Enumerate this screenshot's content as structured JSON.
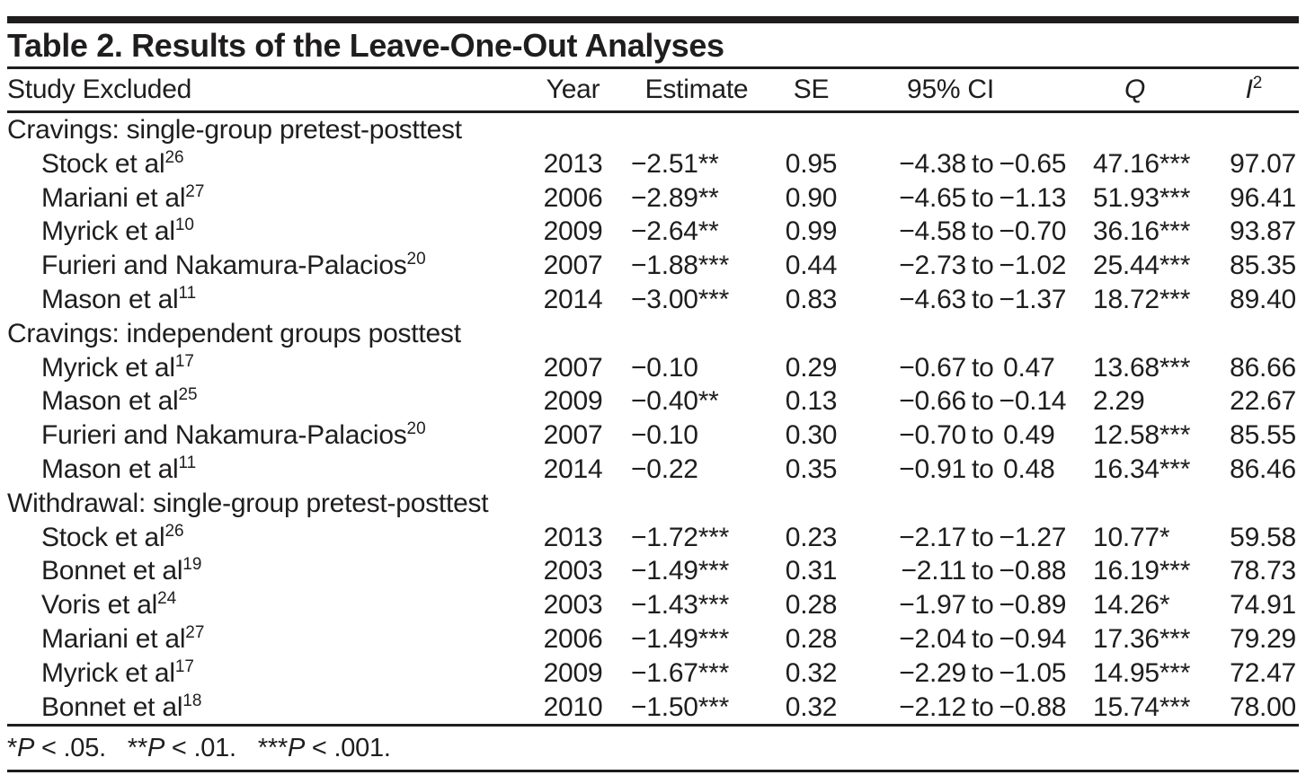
{
  "title": "Table 2. Results of the Leave-One-Out Analyses",
  "columns": {
    "study": "Study Excluded",
    "year": "Year",
    "estimate": "Estimate",
    "se": "SE",
    "ci": "95% CI",
    "q": "Q",
    "i2_base": "I",
    "i2_sup": "2"
  },
  "labels": {
    "ci_separator": "to"
  },
  "sections": [
    {
      "label": "Cravings: single-group pretest-posttest",
      "rows": [
        {
          "study": "Stock et al",
          "ref": "26",
          "year": "2013",
          "estimate": "−2.51**",
          "se": "0.95",
          "ci_low": "−4.38",
          "ci_high": "−0.65",
          "q": "47.16***",
          "i2": "97.07"
        },
        {
          "study": "Mariani et al",
          "ref": "27",
          "year": "2006",
          "estimate": "−2.89**",
          "se": "0.90",
          "ci_low": "−4.65",
          "ci_high": "−1.13",
          "q": "51.93***",
          "i2": "96.41"
        },
        {
          "study": "Myrick et al",
          "ref": "10",
          "year": "2009",
          "estimate": "−2.64**",
          "se": "0.99",
          "ci_low": "−4.58",
          "ci_high": "−0.70",
          "q": "36.16***",
          "i2": "93.87"
        },
        {
          "study": "Furieri and Nakamura-Palacios",
          "ref": "20",
          "year": "2007",
          "estimate": "−1.88***",
          "se": "0.44",
          "ci_low": "−2.73",
          "ci_high": "−1.02",
          "q": "25.44***",
          "i2": "85.35"
        },
        {
          "study": "Mason et al",
          "ref": "11",
          "year": "2014",
          "estimate": "−3.00***",
          "se": "0.83",
          "ci_low": "−4.63",
          "ci_high": "−1.37",
          "q": "18.72***",
          "i2": "89.40"
        }
      ]
    },
    {
      "label": "Cravings: independent groups posttest",
      "rows": [
        {
          "study": "Myrick et al",
          "ref": "17",
          "year": "2007",
          "estimate": "−0.10",
          "se": "0.29",
          "ci_low": "−0.67",
          "ci_high": "0.47",
          "q": "13.68***",
          "i2": "86.66"
        },
        {
          "study": "Mason et al",
          "ref": "25",
          "year": "2009",
          "estimate": "−0.40**",
          "se": "0.13",
          "ci_low": "−0.66",
          "ci_high": "−0.14",
          "q": "2.29",
          "i2": "22.67"
        },
        {
          "study": "Furieri and Nakamura-Palacios",
          "ref": "20",
          "year": "2007",
          "estimate": "−0.10",
          "se": "0.30",
          "ci_low": "−0.70",
          "ci_high": "0.49",
          "q": "12.58***",
          "i2": "85.55"
        },
        {
          "study": "Mason et al",
          "ref": "11",
          "year": "2014",
          "estimate": "−0.22",
          "se": "0.35",
          "ci_low": "−0.91",
          "ci_high": "0.48",
          "q": "16.34***",
          "i2": "86.46"
        }
      ]
    },
    {
      "label": "Withdrawal: single-group pretest-posttest",
      "rows": [
        {
          "study": "Stock et al",
          "ref": "26",
          "year": "2013",
          "estimate": "−1.72***",
          "se": "0.23",
          "ci_low": "−2.17",
          "ci_high": "−1.27",
          "q": "10.77*",
          "i2": "59.58"
        },
        {
          "study": "Bonnet et al",
          "ref": "19",
          "year": "2003",
          "estimate": "−1.49***",
          "se": "0.31",
          "ci_low": "−2.11",
          "ci_high": "−0.88",
          "q": "16.19***",
          "i2": "78.73"
        },
        {
          "study": "Voris et al",
          "ref": "24",
          "year": "2003",
          "estimate": "−1.43***",
          "se": "0.28",
          "ci_low": "−1.97",
          "ci_high": "−0.89",
          "q": "14.26*",
          "i2": "74.91"
        },
        {
          "study": "Mariani et al",
          "ref": "27",
          "year": "2006",
          "estimate": "−1.49***",
          "se": "0.28",
          "ci_low": "−2.04",
          "ci_high": "−0.94",
          "q": "17.36***",
          "i2": "79.29"
        },
        {
          "study": "Myrick et al",
          "ref": "17",
          "year": "2009",
          "estimate": "−1.67***",
          "se": "0.32",
          "ci_low": "−2.29",
          "ci_high": "−1.05",
          "q": "14.95***",
          "i2": "72.47"
        },
        {
          "study": "Bonnet et al",
          "ref": "18",
          "year": "2010",
          "estimate": "−1.50***",
          "se": "0.32",
          "ci_low": "−2.12",
          "ci_high": "−0.88",
          "q": "15.74***",
          "i2": "78.00"
        }
      ]
    }
  ],
  "footnote": {
    "items": [
      {
        "stars": "*",
        "p": "P",
        "rest": " < .05."
      },
      {
        "stars": "**",
        "p": "P",
        "rest": " < .01."
      },
      {
        "stars": "***",
        "p": "P",
        "rest": " < .001."
      }
    ]
  },
  "colors": {
    "text": "#1f1d1e",
    "rule": "#1f1d1e",
    "background": "#ffffff"
  }
}
